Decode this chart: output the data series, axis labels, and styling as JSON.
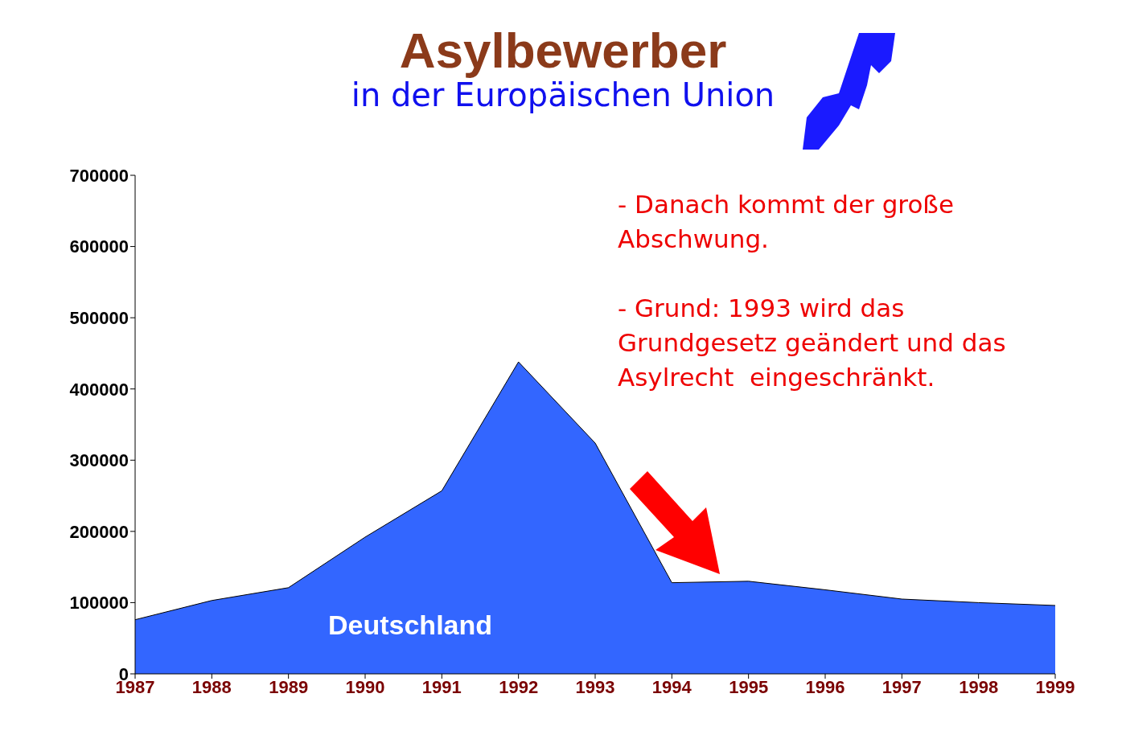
{
  "chart_data": {
    "type": "area",
    "title": "Asylbewerber",
    "subtitle": "in der Europäischen Union",
    "x": [
      1987,
      1988,
      1989,
      1990,
      1991,
      1992,
      1993,
      1994,
      1995,
      1996,
      1997,
      1998,
      1999
    ],
    "series": [
      {
        "name": "Deutschland",
        "color": "#3366ff",
        "values": [
          76000,
          103000,
          121000,
          192000,
          257000,
          438000,
          324000,
          128000,
          130000,
          118000,
          105000,
          100000,
          96000
        ]
      }
    ],
    "xlim": [
      1987,
      1999
    ],
    "xticks": [
      1987,
      1988,
      1989,
      1990,
      1991,
      1992,
      1993,
      1994,
      1995,
      1996,
      1997,
      1998,
      1999
    ],
    "ylim": [
      0,
      700000
    ],
    "yticks": [
      0,
      100000,
      200000,
      300000,
      400000,
      500000,
      600000,
      700000
    ],
    "annotations": [
      "- Danach kommt der große Abschwung.",
      "- Grund: 1993 wird das Grundgesetz geändert und das Asylrecht  eingeschränkt."
    ],
    "line_style": "solid"
  }
}
